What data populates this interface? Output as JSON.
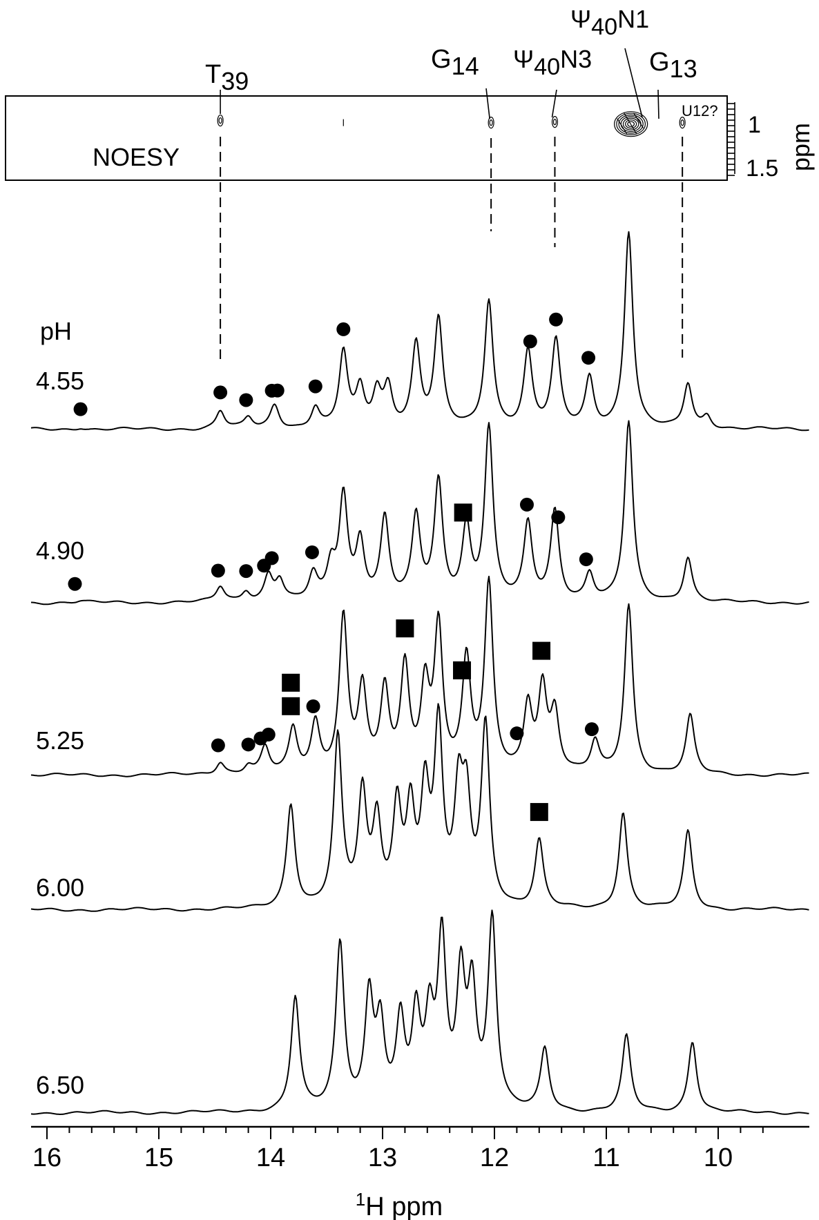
{
  "chart_data": {
    "type": "line",
    "title": "",
    "xlabel_main": "1",
    "xlabel_sub": "H ppm",
    "x_ticks": [
      "16",
      "15",
      "14",
      "13",
      "12",
      "11",
      "10"
    ],
    "xlim": [
      16.1,
      9.4
    ],
    "x_reversed": true,
    "grid": false,
    "ph_label": "pH",
    "noesy": {
      "label": "NOESY",
      "y_unit": "ppm",
      "y_ticks": [
        "1",
        "1.5"
      ],
      "ylim": [
        0.6,
        1.8
      ],
      "cross_peaks": [
        {
          "x": 14.45,
          "y": 0.95,
          "size": "small"
        },
        {
          "x": 13.35,
          "y": 0.98,
          "size": "dot"
        },
        {
          "x": 12.03,
          "y": 0.98,
          "size": "small"
        },
        {
          "x": 11.46,
          "y": 0.97,
          "size": "small"
        },
        {
          "x": 10.78,
          "y": 1.0,
          "size": "large"
        },
        {
          "x": 10.32,
          "y": 0.98,
          "size": "small"
        }
      ]
    },
    "assignments": [
      {
        "base": "T",
        "sub": "39",
        "suffix": "",
        "x": 14.45
      },
      {
        "base": "G",
        "sub": "14",
        "suffix": "",
        "x": 12.03
      },
      {
        "base": "Ψ",
        "sub": "40",
        "suffix": "N3",
        "x": 11.46
      },
      {
        "base": "Ψ",
        "sub": "40",
        "suffix": "N1",
        "x": 10.86
      },
      {
        "base": "G",
        "sub": "13",
        "suffix": "",
        "x": 10.73
      },
      {
        "base": "U12?",
        "sub": "",
        "suffix": "",
        "x": 10.32
      }
    ],
    "series": [
      {
        "name": "4.55",
        "peaks": [
          [
            15.7,
            3
          ],
          [
            14.45,
            26
          ],
          [
            14.2,
            16
          ],
          [
            13.97,
            26
          ],
          [
            13.95,
            10
          ],
          [
            13.6,
            30
          ],
          [
            13.35,
            110
          ],
          [
            13.2,
            55
          ],
          [
            13.05,
            50
          ],
          [
            12.95,
            58
          ],
          [
            12.7,
            120
          ],
          [
            12.5,
            155
          ],
          [
            12.05,
            185
          ],
          [
            11.7,
            110
          ],
          [
            11.45,
            125
          ],
          [
            11.15,
            72
          ],
          [
            10.8,
            285
          ],
          [
            10.27,
            65
          ],
          [
            10.1,
            18
          ]
        ],
        "markers": {
          "circles": [
            15.7,
            14.45,
            14.22,
            13.99,
            13.94,
            13.6,
            13.35,
            11.68,
            11.45,
            11.16
          ],
          "squares": []
        }
      },
      {
        "name": "4.90",
        "peaks": [
          [
            15.7,
            2
          ],
          [
            14.45,
            22
          ],
          [
            14.22,
            15
          ],
          [
            14.02,
            38
          ],
          [
            13.92,
            30
          ],
          [
            13.62,
            38
          ],
          [
            13.46,
            48
          ],
          [
            13.35,
            150
          ],
          [
            13.2,
            85
          ],
          [
            12.98,
            120
          ],
          [
            12.7,
            120
          ],
          [
            12.5,
            170
          ],
          [
            12.25,
            105
          ],
          [
            12.05,
            250
          ],
          [
            11.7,
            110
          ],
          [
            11.46,
            130
          ],
          [
            11.15,
            40
          ],
          [
            10.8,
            260
          ],
          [
            10.27,
            65
          ]
        ],
        "markers": {
          "circles": [
            15.75,
            14.47,
            14.22,
            14.06,
            13.99,
            13.63,
            11.71,
            11.43,
            11.18
          ],
          "squares": [
            12.28
          ]
        }
      },
      {
        "name": "5.25",
        "peaks": [
          [
            14.45,
            18
          ],
          [
            14.2,
            12
          ],
          [
            14.05,
            38
          ],
          [
            13.8,
            64
          ],
          [
            13.6,
            72
          ],
          [
            13.35,
            225
          ],
          [
            13.18,
            120
          ],
          [
            12.98,
            118
          ],
          [
            12.8,
            150
          ],
          [
            12.62,
            120
          ],
          [
            12.5,
            210
          ],
          [
            12.25,
            160
          ],
          [
            12.05,
            270
          ],
          [
            11.7,
            95
          ],
          [
            11.57,
            120
          ],
          [
            11.46,
            85
          ],
          [
            11.1,
            45
          ],
          [
            10.8,
            245
          ],
          [
            10.25,
            85
          ]
        ],
        "markers": {
          "circles": [
            14.47,
            14.2,
            14.09,
            14.02,
            13.62,
            11.8,
            11.13
          ],
          "squares": [
            13.82,
            13.82,
            12.8,
            12.29,
            11.58
          ]
        }
      },
      {
        "name": "6.00",
        "peaks": [
          [
            13.82,
            150
          ],
          [
            13.4,
            245
          ],
          [
            13.18,
            160
          ],
          [
            13.05,
            120
          ],
          [
            12.87,
            140
          ],
          [
            12.75,
            135
          ],
          [
            12.62,
            155
          ],
          [
            12.5,
            255
          ],
          [
            12.32,
            150
          ],
          [
            12.25,
            140
          ],
          [
            12.08,
            260
          ],
          [
            11.6,
            98
          ],
          [
            10.85,
            140
          ],
          [
            10.27,
            113
          ]
        ],
        "markers": {
          "circles": [],
          "squares": [
            11.6
          ]
        }
      },
      {
        "name": "6.50",
        "peaks": [
          [
            13.78,
            165
          ],
          [
            13.38,
            240
          ],
          [
            13.12,
            160
          ],
          [
            13.02,
            120
          ],
          [
            12.84,
            125
          ],
          [
            12.7,
            130
          ],
          [
            12.58,
            120
          ],
          [
            12.47,
            240
          ],
          [
            12.3,
            185
          ],
          [
            12.2,
            165
          ],
          [
            12.02,
            275
          ],
          [
            11.55,
            90
          ],
          [
            10.82,
            110
          ],
          [
            10.23,
            103
          ]
        ],
        "markers": {
          "circles": [],
          "squares": []
        }
      }
    ]
  }
}
